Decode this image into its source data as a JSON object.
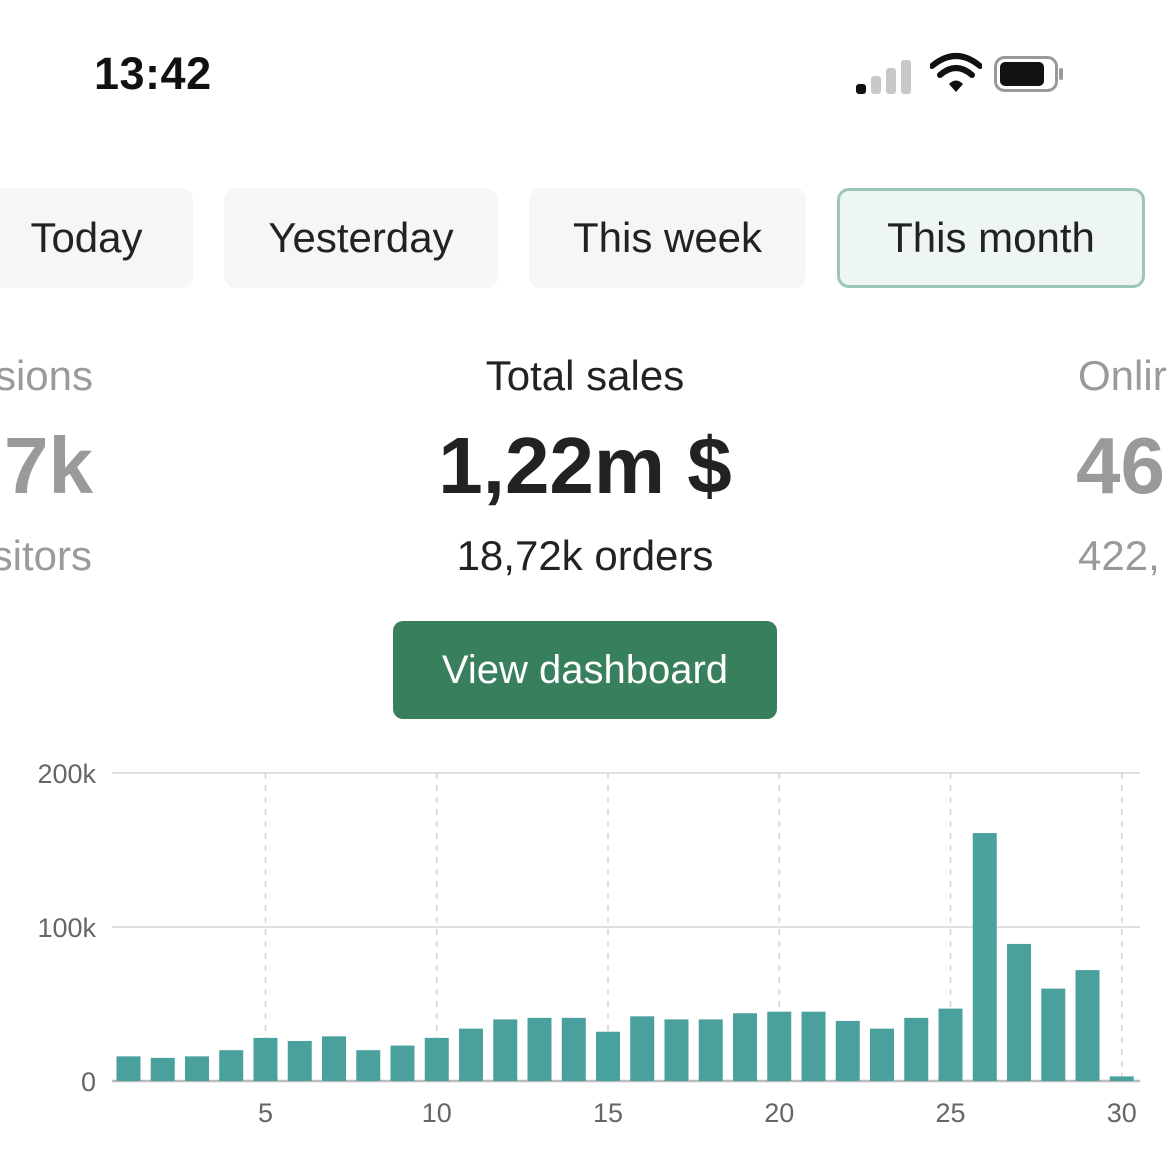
{
  "status_bar": {
    "time": "13:42",
    "icons": [
      "cellular-signal-icon",
      "wifi-icon",
      "battery-icon"
    ],
    "signal_bars_active": 1,
    "signal_bars_total": 4
  },
  "tabs": [
    {
      "label": "Today",
      "active": false
    },
    {
      "label": "Yesterday",
      "active": false
    },
    {
      "label": "This week",
      "active": false
    },
    {
      "label": "This month",
      "active": true
    }
  ],
  "metrics": {
    "left": {
      "label": "sions",
      "value": "7k",
      "sub": "sitors"
    },
    "center": {
      "label": "Total sales",
      "value": "1,22m $",
      "sub": "18,72k orders"
    },
    "right": {
      "label": "Onlir",
      "value": "46",
      "sub": "422,"
    }
  },
  "actions": {
    "view_dashboard": "View dashboard"
  },
  "colors": {
    "bar": "#4aa09c",
    "button": "#387f5e",
    "active_tab_border": "#9cc7b6",
    "active_tab_bg": "#eef6f3"
  },
  "chart_data": {
    "type": "bar",
    "x": [
      1,
      2,
      3,
      4,
      5,
      6,
      7,
      8,
      9,
      10,
      11,
      12,
      13,
      14,
      15,
      16,
      17,
      18,
      19,
      20,
      21,
      22,
      23,
      24,
      25,
      26,
      27,
      28,
      29,
      30
    ],
    "values": [
      16000,
      15000,
      16000,
      20000,
      28000,
      26000,
      29000,
      20000,
      23000,
      28000,
      34000,
      40000,
      41000,
      41000,
      32000,
      42000,
      40000,
      40000,
      44000,
      45000,
      45000,
      39000,
      34000,
      41000,
      47000,
      161000,
      89000,
      60000,
      72000,
      3000
    ],
    "ylim": [
      0,
      200000
    ],
    "y_ticks": [
      {
        "value": 0,
        "label": "0"
      },
      {
        "value": 100000,
        "label": "100k"
      },
      {
        "value": 200000,
        "label": "200k"
      }
    ],
    "x_ticks": [
      {
        "value": 5,
        "label": "5"
      },
      {
        "value": 10,
        "label": "10"
      },
      {
        "value": 15,
        "label": "15"
      },
      {
        "value": 20,
        "label": "20"
      },
      {
        "value": 25,
        "label": "25"
      },
      {
        "value": 30,
        "label": "30"
      }
    ],
    "grid": true
  }
}
